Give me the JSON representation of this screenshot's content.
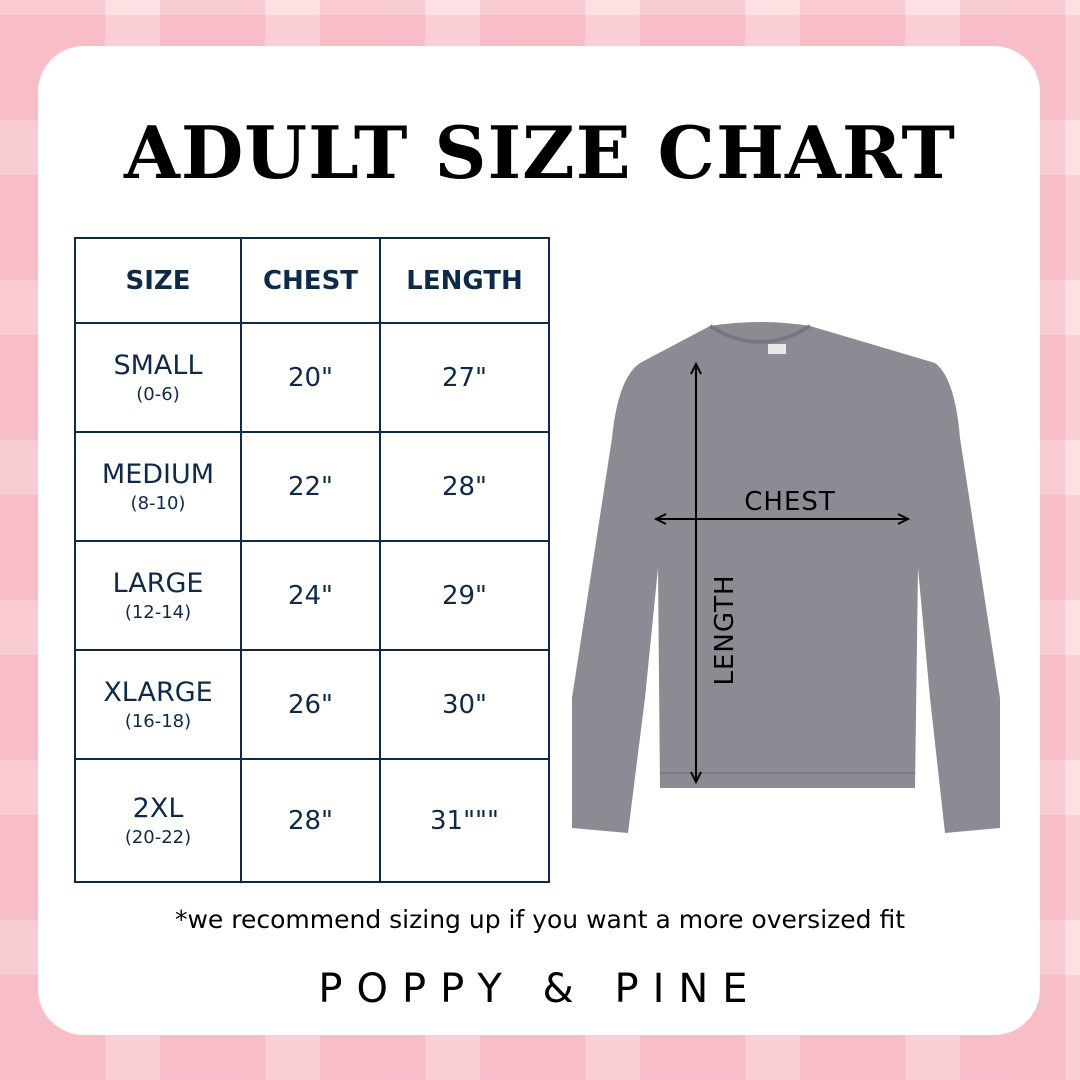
{
  "title": "ADULT SIZE CHART",
  "table": {
    "headers": [
      "SIZE",
      "CHEST",
      "LENGTH"
    ],
    "rows": [
      {
        "size": "SMALL",
        "range": "(0-6)",
        "chest": "20\"",
        "length": "27\""
      },
      {
        "size": "MEDIUM",
        "range": "(8-10)",
        "chest": "22\"",
        "length": "28\""
      },
      {
        "size": "LARGE",
        "range": "(12-14)",
        "chest": "24\"",
        "length": "29\""
      },
      {
        "size": "XLARGE",
        "range": "(16-18)",
        "chest": "26\"",
        "length": "30\""
      },
      {
        "size": "2XL",
        "range": "(20-22)",
        "chest": "28\"",
        "length": "31\"\"\""
      }
    ]
  },
  "diagram": {
    "chest_label": "CHEST",
    "length_label": "LENGTH",
    "garment_color": "#8b8b93"
  },
  "note": "*we recommend sizing up if you want a more oversized fit",
  "brand": "POPPY & PINE",
  "colors": {
    "navy": "#0d2a4a",
    "background": "#fbd9de"
  }
}
